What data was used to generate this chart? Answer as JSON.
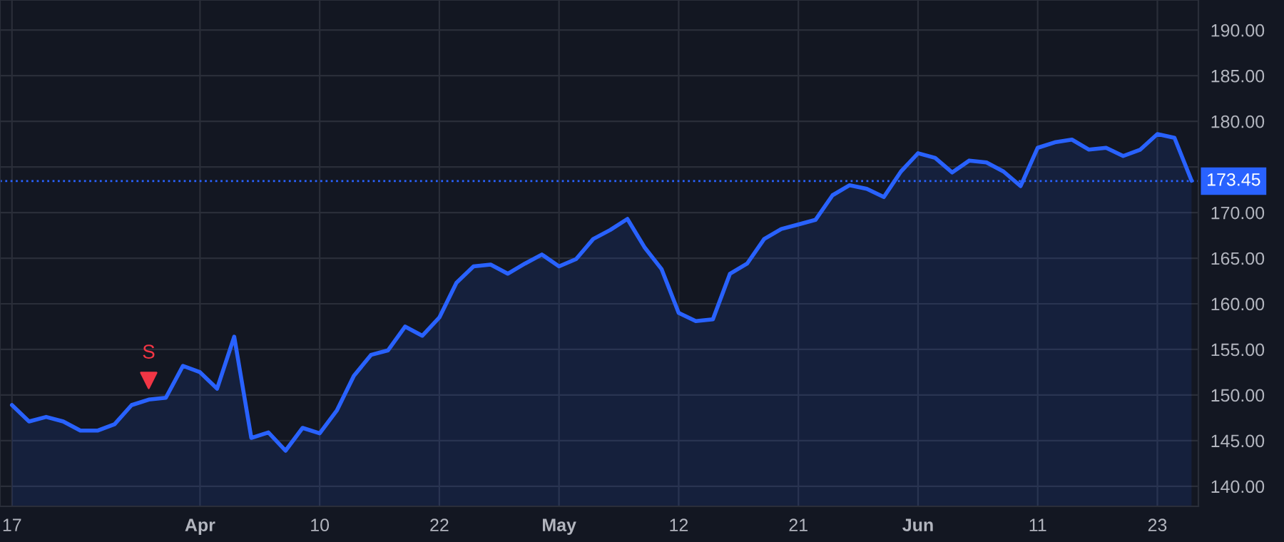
{
  "chart_data": {
    "type": "area",
    "categories": [
      "17",
      null,
      null,
      null,
      null,
      null,
      null,
      null,
      null,
      null,
      null,
      "Apr",
      null,
      null,
      null,
      null,
      null,
      null,
      "10",
      null,
      null,
      null,
      null,
      null,
      null,
      "22",
      null,
      null,
      null,
      null,
      null,
      null,
      "May",
      null,
      null,
      null,
      null,
      null,
      null,
      "12",
      null,
      null,
      null,
      null,
      null,
      null,
      "21",
      null,
      null,
      null,
      null,
      null,
      null,
      "Jun",
      null,
      null,
      null,
      null,
      null,
      null,
      "11",
      null,
      null,
      null,
      null,
      null,
      null,
      "23",
      null,
      null
    ],
    "series": [
      {
        "color": "#2962ff",
        "values": [
          148.9,
          147.1,
          147.6,
          147.1,
          146.1,
          146.1,
          146.8,
          148.9,
          149.5,
          149.7,
          153.2,
          152.5,
          150.7,
          156.4,
          145.3,
          145.9,
          143.9,
          146.4,
          145.8,
          148.3,
          152.1,
          154.4,
          154.9,
          157.5,
          156.5,
          158.5,
          162.3,
          164.1,
          164.3,
          163.3,
          164.4,
          165.4,
          164.1,
          164.9,
          167.1,
          168.1,
          169.3,
          166.2,
          163.8,
          159.0,
          158.1,
          158.3,
          163.3,
          164.4,
          167.1,
          168.2,
          168.7,
          169.2,
          171.9,
          173.0,
          172.6,
          171.7,
          174.5,
          176.5,
          176.0,
          174.4,
          175.7,
          175.5,
          174.5,
          172.9,
          177.1,
          177.7,
          178.0,
          176.9,
          177.1,
          176.2,
          176.9,
          178.6,
          178.2,
          173.5
        ]
      },
      {
        "type": "scatter",
        "color": "#f23645",
        "marker": "triangle",
        "values": [
          null,
          null,
          null,
          null,
          null,
          null,
          null,
          null,
          151.6,
          null,
          null,
          null,
          null,
          null,
          null,
          null,
          null,
          null,
          null,
          null,
          null,
          null,
          null,
          null,
          null,
          null,
          null,
          null,
          null,
          null,
          null,
          null,
          null,
          null,
          null,
          null,
          null,
          null,
          null,
          null,
          null,
          null,
          null,
          null,
          null,
          null,
          null,
          null,
          null,
          null,
          null,
          null,
          null,
          null,
          null,
          null,
          null,
          null,
          null,
          null,
          null,
          null,
          null,
          null,
          null,
          null,
          null,
          null,
          null,
          null
        ]
      }
    ],
    "annotations": [
      "S"
    ],
    "ylim": [
      137.8,
      193.3
    ],
    "yticks": [
      {
        "value": 140,
        "label": "140.00"
      },
      {
        "value": 145,
        "label": "145.00"
      },
      {
        "value": 150,
        "label": "150.00"
      },
      {
        "value": 155,
        "label": "155.00"
      },
      {
        "value": 160,
        "label": "160.00"
      },
      {
        "value": 165,
        "label": "165.00"
      },
      {
        "value": 170,
        "label": "170.00"
      },
      {
        "value": 175,
        "label": null
      },
      {
        "value": 180,
        "label": "180.00"
      },
      {
        "value": 185,
        "label": "185.00"
      },
      {
        "value": 190,
        "label": "190.00"
      }
    ],
    "ref_lines": [
      {
        "axis": "y",
        "value": 173.45,
        "label": "173.45",
        "color": "#2962ff",
        "line_style": "dotted"
      }
    ],
    "grid": true
  }
}
